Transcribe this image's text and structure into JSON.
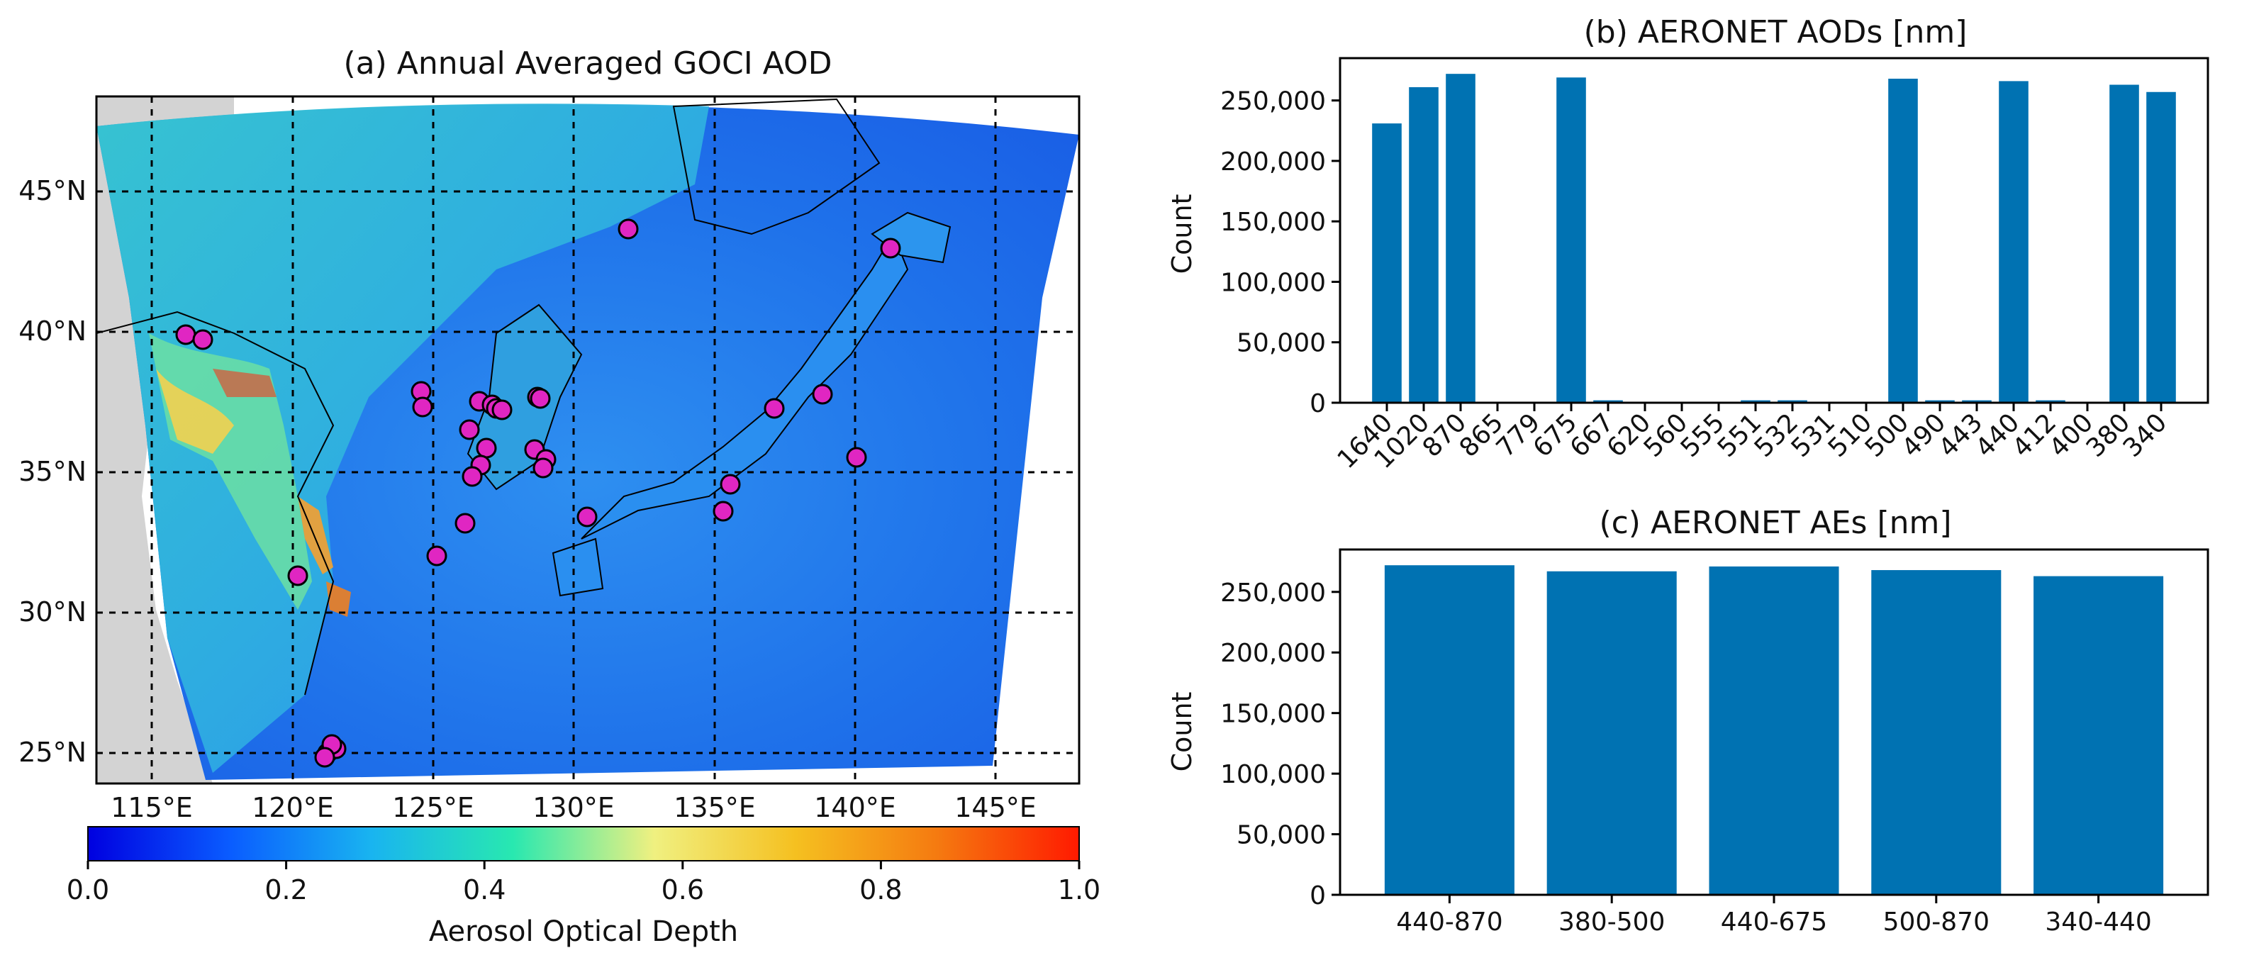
{
  "colors": {
    "bar": "#0072b2",
    "marker": "#e026c2",
    "land": "#d3d3d3",
    "sea_low": "#1a66f0",
    "sea_mid": "#3aa3e0",
    "plume": "#35d5c0"
  },
  "map_panel": {
    "title": "(a) Annual Averaged GOCI AOD",
    "lon_labels": [
      "115°E",
      "120°E",
      "125°E",
      "130°E",
      "135°E",
      "140°E",
      "145°E"
    ],
    "lat_labels": [
      "45°N",
      "40°N",
      "35°N",
      "30°N",
      "25°N"
    ],
    "colorbar": {
      "label": "Aerosol Optical Depth",
      "ticks": [
        "0.0",
        "0.2",
        "0.4",
        "0.6",
        "0.8",
        "1.0"
      ],
      "stops": [
        "#0000e0",
        "#0a5cff",
        "#19b4f0",
        "#28e8b0",
        "#f0f080",
        "#f5c020",
        "#f57a10",
        "#ff1a00"
      ]
    },
    "station_count": 33
  },
  "chart_data": [
    {
      "type": "bar",
      "title": "(b) AERONET AODs [nm]",
      "xlabel": "",
      "ylabel": "Count",
      "categories": [
        "1640",
        "1020",
        "870",
        "865",
        "779",
        "675",
        "667",
        "620",
        "560",
        "555",
        "551",
        "532",
        "531",
        "510",
        "500",
        "490",
        "443",
        "440",
        "412",
        "400",
        "380",
        "340"
      ],
      "values": [
        231000,
        261000,
        272000,
        0,
        0,
        269000,
        2000,
        0,
        0,
        0,
        2000,
        2000,
        0,
        0,
        268000,
        2000,
        2000,
        266000,
        2000,
        0,
        263000,
        257000
      ],
      "ylim": [
        0,
        285000
      ],
      "yticks": [
        0,
        50000,
        100000,
        150000,
        200000,
        250000
      ],
      "ytick_labels": [
        "0",
        "50,000",
        "100,000",
        "150,000",
        "200,000",
        "250,000"
      ]
    },
    {
      "type": "bar",
      "title": "(c) AERONET AEs [nm]",
      "xlabel": "",
      "ylabel": "Count",
      "categories": [
        "440-870",
        "380-500",
        "440-675",
        "500-870",
        "340-440"
      ],
      "values": [
        272000,
        267000,
        271000,
        268000,
        263000
      ],
      "ylim": [
        0,
        285000
      ],
      "yticks": [
        0,
        50000,
        100000,
        150000,
        200000,
        250000
      ],
      "ytick_labels": [
        "0",
        "50,000",
        "100,000",
        "150,000",
        "200,000",
        "250,000"
      ]
    }
  ]
}
